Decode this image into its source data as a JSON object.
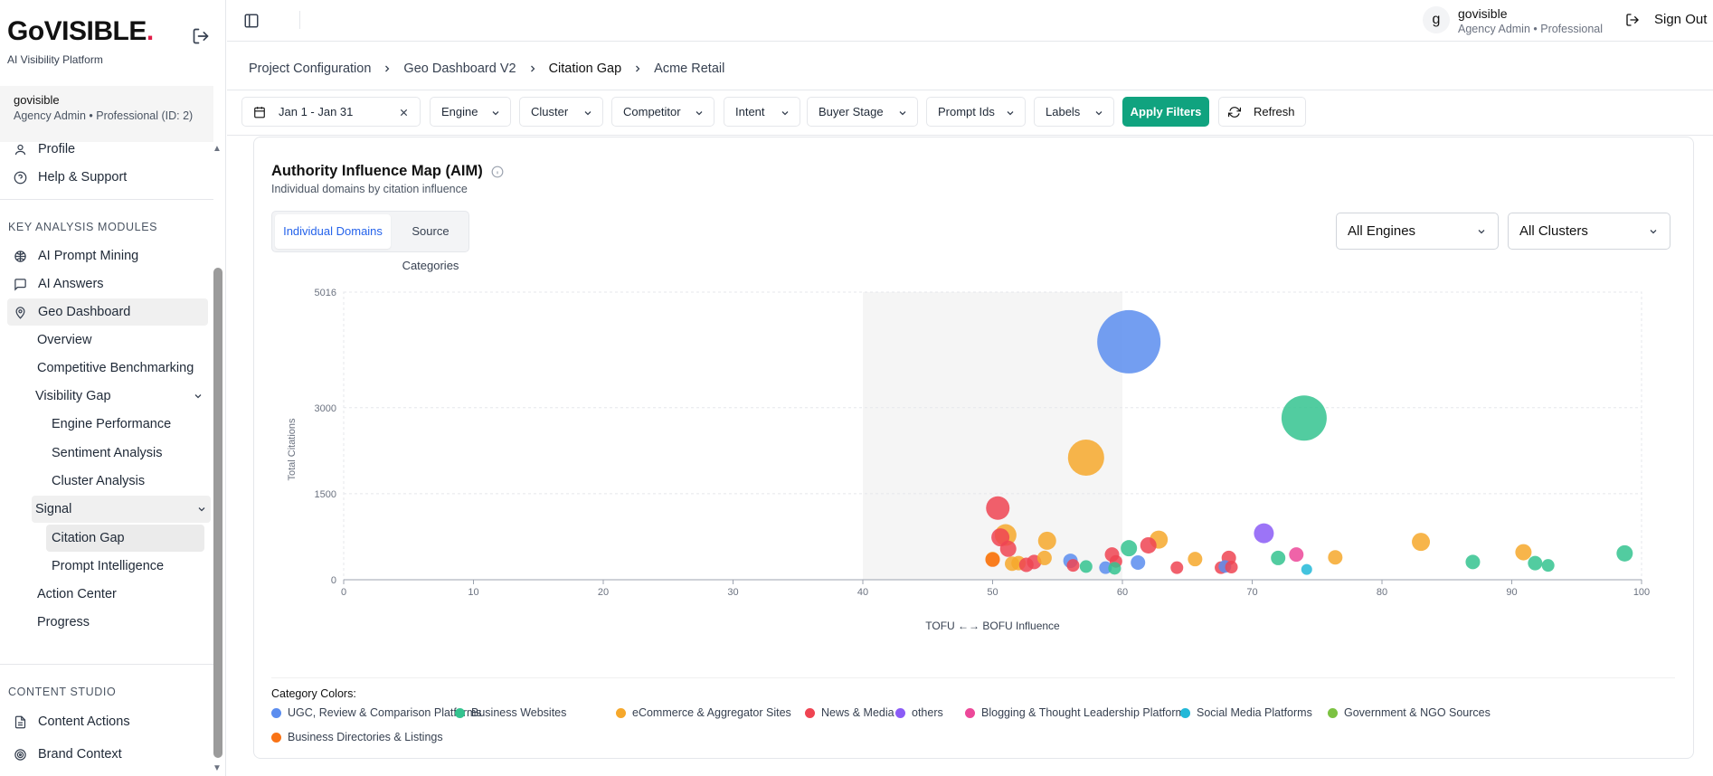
{
  "brand": {
    "logo_prefix": "G",
    "logo_o": "o",
    "logo_suffix": "VISIBLE",
    "logo_dot": ".",
    "tagline": "AI Visibility Platform"
  },
  "org": {
    "name": "govisible",
    "role": "Agency Admin • Professional (ID: 2)"
  },
  "sidebar": {
    "top_items": [
      {
        "label": "Profile",
        "icon": "user-icon"
      },
      {
        "label": "Help & Support",
        "icon": "help-circle-icon"
      }
    ],
    "section1_label": "KEY ANALYSIS MODULES",
    "modules": [
      {
        "label": "AI Prompt Mining",
        "icon": "brain-icon"
      },
      {
        "label": "AI Answers",
        "icon": "message-icon"
      },
      {
        "label": "Geo Dashboard",
        "icon": "map-pin-icon"
      }
    ],
    "geo_sub": {
      "overview": "Overview",
      "benchmarking": "Competitive Benchmarking",
      "visibility_gap": "Visibility Gap",
      "engine_performance": "Engine Performance",
      "sentiment": "Sentiment Analysis",
      "cluster": "Cluster Analysis",
      "signal": "Signal",
      "citation_gap": "Citation Gap",
      "prompt_intelligence": "Prompt Intelligence",
      "action_center": "Action Center",
      "progress": "Progress"
    },
    "section2_label": "CONTENT STUDIO",
    "studio": [
      {
        "label": "Content Actions",
        "icon": "document-icon"
      },
      {
        "label": "Brand Context",
        "icon": "target-icon"
      }
    ]
  },
  "user": {
    "avatar": "g",
    "name": "govisible",
    "role": "Agency Admin • Professional",
    "signout": "Sign Out"
  },
  "breadcrumb": [
    "Project Configuration",
    "Geo Dashboard V2",
    "Citation Gap",
    "Acme Retail"
  ],
  "filters": {
    "date": "Jan 1 - Jan 31",
    "engine": "Engine",
    "cluster": "Cluster",
    "competitor": "Competitor",
    "intent": "Intent",
    "buyer_stage": "Buyer Stage",
    "prompt_ids": "Prompt Ids",
    "labels": "Labels",
    "apply": "Apply Filters",
    "refresh": "Refresh"
  },
  "card": {
    "title": "Authority Influence Map (AIM)",
    "subtitle": "Individual domains by citation influence",
    "toggle": {
      "active": "Individual Domains",
      "inactive": "Source Categories"
    },
    "engines_select": "All Engines",
    "clusters_select": "All Clusters",
    "legend_title": "Category Colors:"
  },
  "chart_data": {
    "type": "scatter",
    "xlabel": "TOFU ←→ BOFU Influence",
    "ylabel": "Total Citations",
    "xlim": [
      0,
      100
    ],
    "ylim": [
      0,
      5016
    ],
    "x_ticks": [
      0,
      10,
      20,
      30,
      40,
      50,
      60,
      70,
      80,
      90,
      100
    ],
    "y_ticks": [
      0,
      1500,
      3000,
      5016
    ],
    "highlight_band": [
      40,
      60
    ],
    "grid": true,
    "legend": [
      {
        "name": "UGC, Review & Comparison Platforms",
        "color": "#5b8def"
      },
      {
        "name": "Business Websites",
        "color": "#34c38f"
      },
      {
        "name": "eCommerce & Aggregator Sites",
        "color": "#f6a82b"
      },
      {
        "name": "News & Media",
        "color": "#ef4452"
      },
      {
        "name": "others",
        "color": "#8b5cf6"
      },
      {
        "name": "Blogging & Thought Leadership Platforms",
        "color": "#ec4899"
      },
      {
        "name": "Social Media Platforms",
        "color": "#22b8d8"
      },
      {
        "name": "Government & NGO Sources",
        "color": "#7cc242"
      },
      {
        "name": "Business Directories & Listings",
        "color": "#f97316"
      }
    ],
    "points": [
      {
        "x": 60.5,
        "y": 4150,
        "c": 0
      },
      {
        "x": 74.0,
        "y": 2820,
        "c": 1
      },
      {
        "x": 57.2,
        "y": 2130,
        "c": 2
      },
      {
        "x": 50.4,
        "y": 1250,
        "c": 3
      },
      {
        "x": 50.6,
        "y": 740,
        "c": 3
      },
      {
        "x": 51.0,
        "y": 780,
        "c": 2
      },
      {
        "x": 51.2,
        "y": 540,
        "c": 3
      },
      {
        "x": 54.2,
        "y": 680,
        "c": 2
      },
      {
        "x": 50.0,
        "y": 360,
        "c": 2
      },
      {
        "x": 50.0,
        "y": 350,
        "c": 8
      },
      {
        "x": 51.5,
        "y": 280,
        "c": 2
      },
      {
        "x": 52.0,
        "y": 290,
        "c": 2
      },
      {
        "x": 52.6,
        "y": 260,
        "c": 3
      },
      {
        "x": 53.2,
        "y": 310,
        "c": 3
      },
      {
        "x": 54.0,
        "y": 380,
        "c": 2
      },
      {
        "x": 56.0,
        "y": 330,
        "c": 0
      },
      {
        "x": 56.2,
        "y": 250,
        "c": 3
      },
      {
        "x": 57.2,
        "y": 230,
        "c": 1
      },
      {
        "x": 58.7,
        "y": 210,
        "c": 0
      },
      {
        "x": 59.2,
        "y": 440,
        "c": 3
      },
      {
        "x": 59.5,
        "y": 320,
        "c": 3
      },
      {
        "x": 59.4,
        "y": 200,
        "c": 1
      },
      {
        "x": 60.5,
        "y": 550,
        "c": 1
      },
      {
        "x": 61.2,
        "y": 300,
        "c": 0
      },
      {
        "x": 62.0,
        "y": 600,
        "c": 3
      },
      {
        "x": 62.8,
        "y": 700,
        "c": 2
      },
      {
        "x": 64.2,
        "y": 210,
        "c": 3
      },
      {
        "x": 65.6,
        "y": 360,
        "c": 2
      },
      {
        "x": 67.6,
        "y": 210,
        "c": 3
      },
      {
        "x": 67.9,
        "y": 230,
        "c": 0
      },
      {
        "x": 68.2,
        "y": 380,
        "c": 3
      },
      {
        "x": 68.4,
        "y": 220,
        "c": 3
      },
      {
        "x": 70.9,
        "y": 810,
        "c": 4
      },
      {
        "x": 72.0,
        "y": 380,
        "c": 1
      },
      {
        "x": 73.4,
        "y": 440,
        "c": 5
      },
      {
        "x": 74.2,
        "y": 180,
        "c": 6
      },
      {
        "x": 76.4,
        "y": 390,
        "c": 2
      },
      {
        "x": 83.0,
        "y": 660,
        "c": 2
      },
      {
        "x": 87.0,
        "y": 310,
        "c": 1
      },
      {
        "x": 90.9,
        "y": 480,
        "c": 2
      },
      {
        "x": 91.8,
        "y": 290,
        "c": 1
      },
      {
        "x": 92.8,
        "y": 250,
        "c": 1
      },
      {
        "x": 98.7,
        "y": 460,
        "c": 1
      }
    ],
    "sizes": [
      35,
      25,
      20,
      13,
      10,
      12,
      9,
      10,
      8,
      8,
      8,
      8,
      8,
      8,
      8,
      8,
      7,
      7,
      7,
      8,
      7,
      7,
      9,
      8,
      9,
      10,
      7,
      8,
      7,
      7,
      8,
      7,
      11,
      8,
      8,
      6,
      8,
      10,
      8,
      9,
      8,
      7,
      9
    ]
  }
}
